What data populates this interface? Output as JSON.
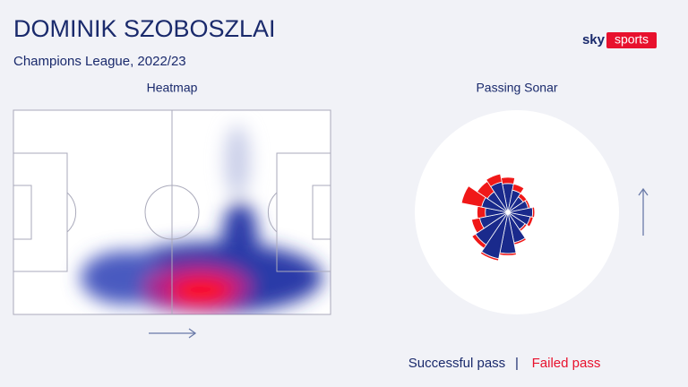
{
  "header": {
    "title": "DOMINIK SZOBOSZLAI",
    "subtitle": "Champions League, 2022/23",
    "logo_left": "sky",
    "logo_right": "sports"
  },
  "heatmap": {
    "label": "Heatmap"
  },
  "sonar": {
    "label": "Passing Sonar",
    "directions": [
      0,
      22.5,
      45,
      67.5,
      90,
      112.5,
      135,
      157.5,
      180,
      202.5,
      225,
      247.5,
      270,
      292.5,
      315,
      337.5
    ],
    "successful": [
      28,
      22,
      18,
      20,
      24,
      22,
      20,
      30,
      40,
      46,
      38,
      28,
      22,
      26,
      24,
      30
    ],
    "failed": [
      6,
      6,
      4,
      2,
      2,
      3,
      2,
      2,
      2,
      2,
      4,
      8,
      8,
      20,
      12,
      8
    ]
  },
  "legend": {
    "successful": "Successful pass",
    "separator": "|",
    "failed": "Failed pass"
  }
}
